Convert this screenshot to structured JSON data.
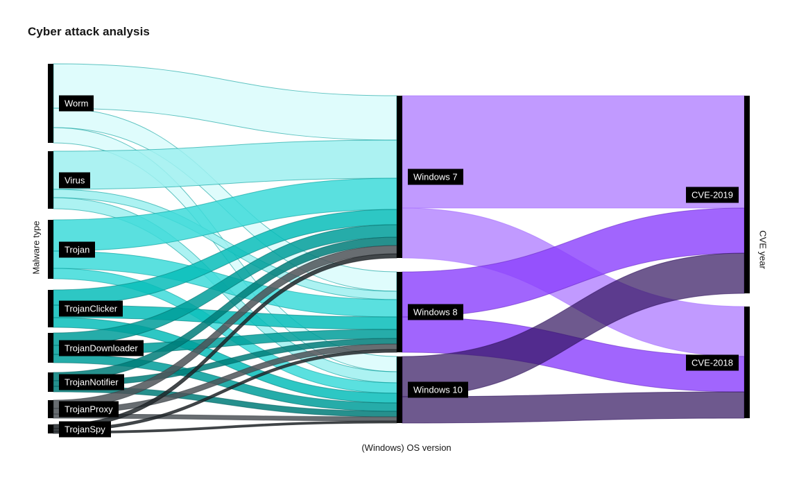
{
  "title": "Cyber attack analysis",
  "axes": {
    "left_label": "Malware type",
    "bottom_label": "(Windows) OS version",
    "right_label": "CVE year"
  },
  "chart_data": {
    "type": "sankey",
    "title": "Cyber attack analysis",
    "legend_position": "none",
    "grid": false,
    "columns": [
      {
        "label": "Malware type",
        "nodes": [
          "Worm",
          "Virus",
          "Trojan",
          "TrojanClicker",
          "TrojanDownloader",
          "TrojanNotifier",
          "TrojanProxy",
          "TrojanSpy"
        ]
      },
      {
        "label": "(Windows) OS version",
        "nodes": [
          "Windows 7",
          "Windows 8",
          "Windows 10"
        ]
      },
      {
        "label": "CVE year",
        "nodes": [
          "CVE-2019",
          "CVE-2018"
        ]
      }
    ],
    "links": [
      {
        "source": "Worm",
        "target": "Windows 7",
        "value": 64
      },
      {
        "source": "Worm",
        "target": "Windows 8",
        "value": 28
      },
      {
        "source": "Worm",
        "target": "Windows 10",
        "value": 22
      },
      {
        "source": "Virus",
        "target": "Windows 7",
        "value": 55
      },
      {
        "source": "Virus",
        "target": "Windows 8",
        "value": 12
      },
      {
        "source": "Virus",
        "target": "Windows 10",
        "value": 16
      },
      {
        "source": "Trojan",
        "target": "Windows 7",
        "value": 45
      },
      {
        "source": "Trojan",
        "target": "Windows 8",
        "value": 25
      },
      {
        "source": "Trojan",
        "target": "Windows 10",
        "value": 15
      },
      {
        "source": "TrojanClicker",
        "target": "Windows 7",
        "value": 22
      },
      {
        "source": "TrojanClicker",
        "target": "Windows 8",
        "value": 18
      },
      {
        "source": "TrojanClicker",
        "target": "Windows 10",
        "value": 14
      },
      {
        "source": "TrojanDownloader",
        "target": "Windows 7",
        "value": 18
      },
      {
        "source": "TrojanDownloader",
        "target": "Windows 8",
        "value": 13
      },
      {
        "source": "TrojanDownloader",
        "target": "Windows 10",
        "value": 12
      },
      {
        "source": "TrojanNotifier",
        "target": "Windows 7",
        "value": 12
      },
      {
        "source": "TrojanNotifier",
        "target": "Windows 8",
        "value": 8
      },
      {
        "source": "TrojanNotifier",
        "target": "Windows 10",
        "value": 8
      },
      {
        "source": "TrojanProxy",
        "target": "Windows 7",
        "value": 12
      },
      {
        "source": "TrojanProxy",
        "target": "Windows 8",
        "value": 8
      },
      {
        "source": "TrojanProxy",
        "target": "Windows 10",
        "value": 6
      },
      {
        "source": "TrojanSpy",
        "target": "Windows 7",
        "value": 6
      },
      {
        "source": "TrojanSpy",
        "target": "Windows 8",
        "value": 4
      },
      {
        "source": "TrojanSpy",
        "target": "Windows 10",
        "value": 3
      },
      {
        "source": "Windows 7",
        "target": "CVE-2019",
        "value": 162
      },
      {
        "source": "Windows 7",
        "target": "CVE-2018",
        "value": 72
      },
      {
        "source": "Windows 8",
        "target": "CVE-2019",
        "value": 65
      },
      {
        "source": "Windows 8",
        "target": "CVE-2018",
        "value": 51
      },
      {
        "source": "Windows 10",
        "target": "CVE-2019",
        "value": 58
      },
      {
        "source": "Windows 10",
        "target": "CVE-2018",
        "value": 38
      }
    ],
    "node_color": "#000000",
    "label_style": {
      "background": "#000000",
      "text": "#ffffff"
    },
    "link_colors": {
      "Worm": {
        "fill": "#d9fbfb",
        "stroke": "#009d9a",
        "opacity": 0.85
      },
      "Virus": {
        "fill": "#9ef0f0",
        "stroke": "#009d9a",
        "opacity": 0.85
      },
      "Trojan": {
        "fill": "#3ddbd9",
        "stroke": "#009d9a",
        "opacity": 0.85
      },
      "TrojanClicker": {
        "fill": "#08bdba",
        "stroke": "#007d79",
        "opacity": 0.85
      },
      "TrojanDownloader": {
        "fill": "#009d9a",
        "stroke": "#006b68",
        "opacity": 0.85
      },
      "TrojanNotifier": {
        "fill": "#007d79",
        "stroke": "#005d5d",
        "opacity": 0.85
      },
      "TrojanProxy": {
        "fill": "#4d5358",
        "stroke": "#343a3f",
        "opacity": 0.85
      },
      "TrojanSpy": {
        "fill": "#21272a",
        "stroke": "#121619",
        "opacity": 0.85
      },
      "Windows 7": {
        "fill": "#be95ff",
        "stroke": "#a56eff",
        "opacity": 0.95
      },
      "Windows 8": {
        "fill": "#8a3ffc",
        "stroke": "#6929c4",
        "opacity": 0.8
      },
      "Windows 10": {
        "fill": "#31135e",
        "stroke": "#31135e",
        "opacity": 0.7
      }
    }
  }
}
